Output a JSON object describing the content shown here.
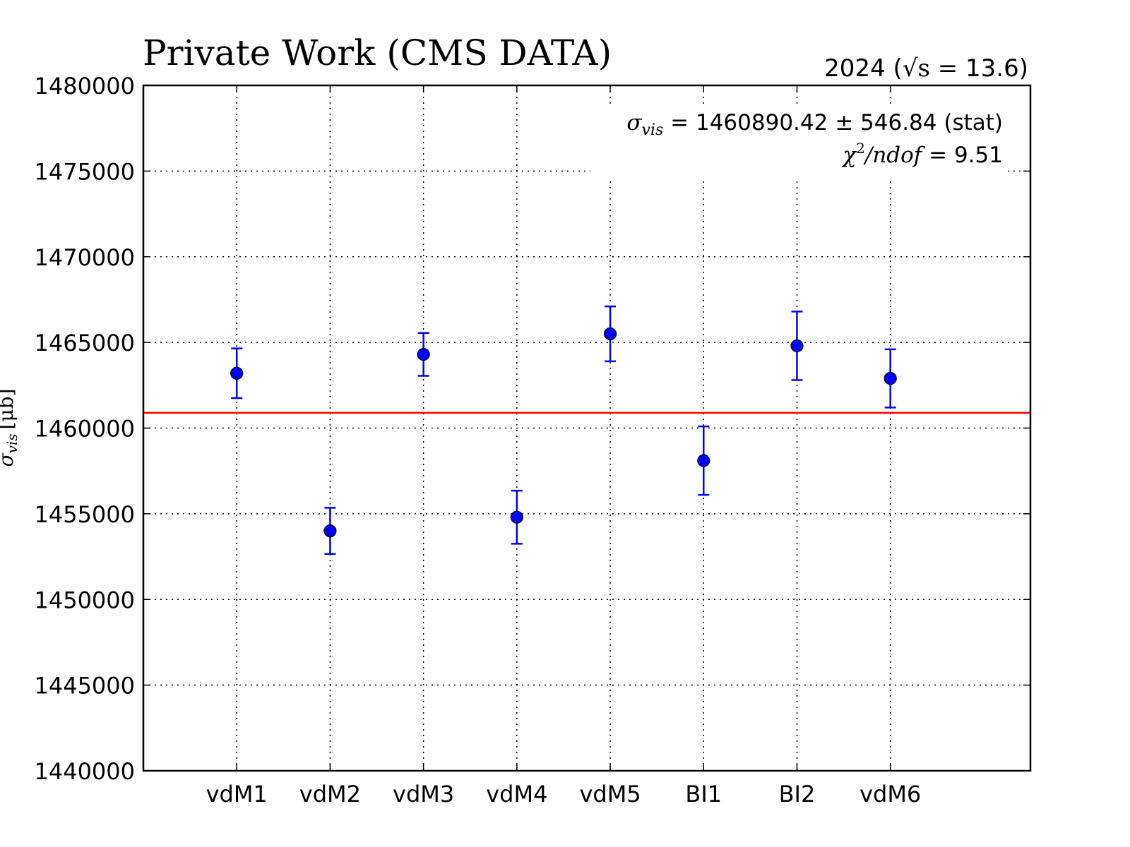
{
  "chart_data": {
    "type": "scatter",
    "title": "Private Work (CMS DATA)",
    "subtitle": {
      "year": "2024",
      "open": "(",
      "sqrt_s": "√s",
      "eq": "=",
      "energy": "13.6",
      "close": ")"
    },
    "ylabel": {
      "symbol": "σ",
      "subscript": "vis",
      "unit": "[μb]"
    },
    "xlabel": "",
    "ylim": [
      1440000,
      1480000
    ],
    "yticks": [
      1440000,
      1445000,
      1450000,
      1455000,
      1460000,
      1465000,
      1470000,
      1475000,
      1480000
    ],
    "categories": [
      "vdM1",
      "vdM2",
      "vdM3",
      "vdM4",
      "vdM5",
      "BI1",
      "BI2",
      "vdM6"
    ],
    "series": [
      {
        "values": [
          1463200,
          1454000,
          1464300,
          1454800,
          1465500,
          1458100,
          1464800,
          1462900
        ],
        "errors": [
          1450,
          1350,
          1250,
          1550,
          1600,
          2000,
          2000,
          1700
        ],
        "color": "#0000ff"
      }
    ],
    "fit_line": {
      "value": 1460890.42,
      "color": "#ff0000"
    },
    "annotations": {
      "sigma_symbol": "σ",
      "sigma_sub": "vis",
      "sigma_text": " = 1460890.42 ± 546.84 (stat)",
      "chi_symbol": "χ",
      "chi_sup": "2",
      "chi_rest": "/ndof",
      "chi_text": " = 9.51"
    },
    "grid": true,
    "legend": "none"
  }
}
